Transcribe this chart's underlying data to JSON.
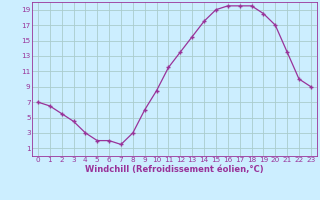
{
  "x": [
    0,
    1,
    2,
    3,
    4,
    5,
    6,
    7,
    8,
    9,
    10,
    11,
    12,
    13,
    14,
    15,
    16,
    17,
    18,
    19,
    20,
    21,
    22,
    23
  ],
  "y": [
    7,
    6.5,
    5.5,
    4.5,
    3,
    2,
    2,
    1.5,
    3,
    6,
    8.5,
    11.5,
    13.5,
    15.5,
    17.5,
    19,
    19.5,
    19.5,
    19.5,
    18.5,
    17,
    13.5,
    10,
    9
  ],
  "xlabel": "Windchill (Refroidissement éolien,°C)",
  "xlim": [
    -0.5,
    23.5
  ],
  "ylim": [
    0,
    20
  ],
  "yticks": [
    1,
    3,
    5,
    7,
    9,
    11,
    13,
    15,
    17,
    19
  ],
  "xticks": [
    0,
    1,
    2,
    3,
    4,
    5,
    6,
    7,
    8,
    9,
    10,
    11,
    12,
    13,
    14,
    15,
    16,
    17,
    18,
    19,
    20,
    21,
    22,
    23
  ],
  "line_color": "#993399",
  "marker": "+",
  "bg_color": "#cceeff",
  "grid_color": "#aacccc",
  "text_color": "#993399",
  "tick_label_size": 5.2,
  "xlabel_size": 6.0
}
